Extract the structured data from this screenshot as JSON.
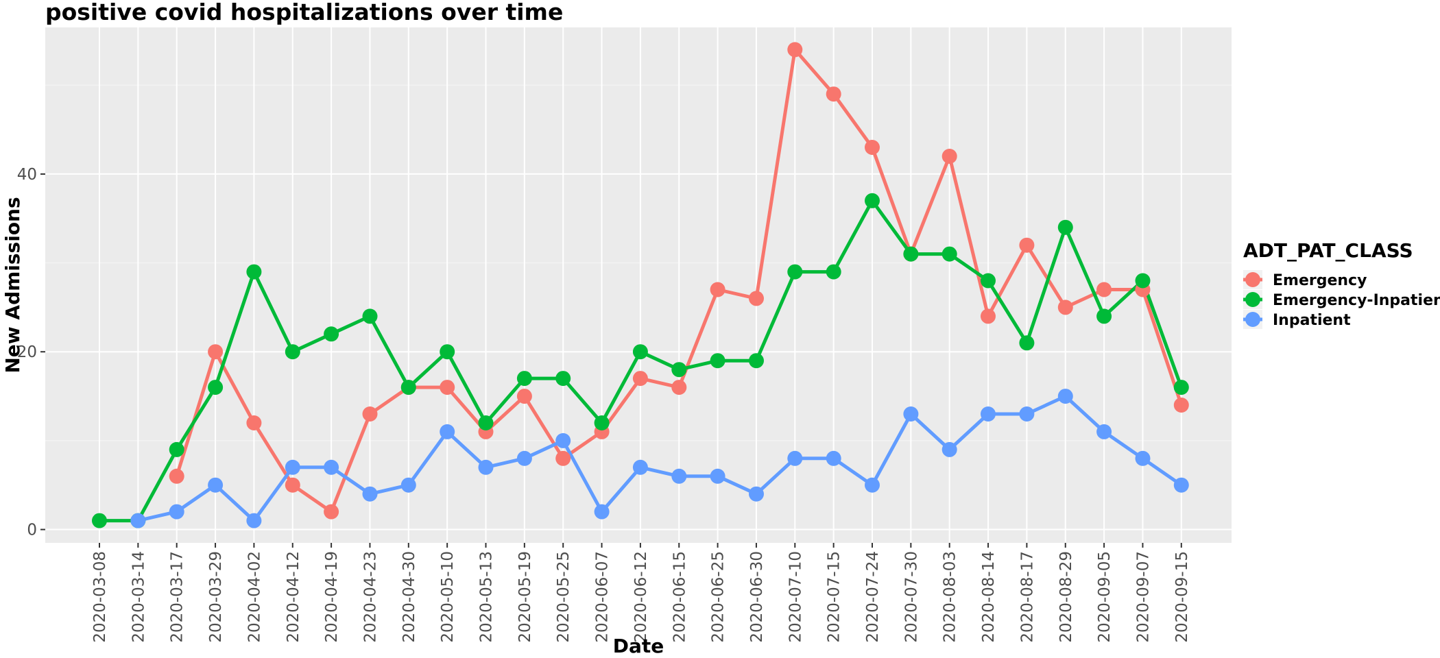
{
  "chart_data": {
    "type": "line",
    "title": "positive covid hospitalizations over time",
    "xlabel": "Date",
    "ylabel": "New Admissions",
    "legend_title": "ADT_PAT_CLASS",
    "legend_position": "right",
    "grid": true,
    "ylim": [
      -1.5,
      56.5
    ],
    "yticks": [
      0,
      20,
      40
    ],
    "x": [
      "2020-03-08",
      "2020-03-14",
      "2020-03-17",
      "2020-03-29",
      "2020-04-02",
      "2020-04-12",
      "2020-04-19",
      "2020-04-23",
      "2020-04-30",
      "2020-05-10",
      "2020-05-13",
      "2020-05-19",
      "2020-05-25",
      "2020-06-07",
      "2020-06-12",
      "2020-06-15",
      "2020-06-25",
      "2020-06-30",
      "2020-07-10",
      "2020-07-15",
      "2020-07-24",
      "2020-07-30",
      "2020-08-03",
      "2020-08-14",
      "2020-08-17",
      "2020-08-29",
      "2020-09-05",
      "2020-09-07",
      "2020-09-15"
    ],
    "series": [
      {
        "name": "Emergency",
        "color": "#F8766D",
        "values": [
          null,
          null,
          6,
          20,
          12,
          5,
          2,
          13,
          16,
          16,
          11,
          15,
          8,
          11,
          17,
          16,
          27,
          26,
          54,
          49,
          43,
          31,
          42,
          24,
          32,
          25,
          27,
          27,
          14
        ]
      },
      {
        "name": "Emergency-Inpatient",
        "color": "#00BA38",
        "values": [
          1,
          1,
          9,
          16,
          29,
          20,
          22,
          24,
          16,
          20,
          12,
          17,
          17,
          12,
          20,
          18,
          19,
          19,
          29,
          29,
          37,
          31,
          31,
          28,
          21,
          34,
          24,
          28,
          16
        ]
      },
      {
        "name": "Inpatient",
        "color": "#619CFF",
        "values": [
          null,
          1,
          2,
          5,
          1,
          7,
          7,
          4,
          5,
          11,
          7,
          8,
          10,
          2,
          7,
          6,
          6,
          4,
          8,
          8,
          5,
          13,
          9,
          13,
          13,
          15,
          11,
          8,
          5
        ]
      }
    ]
  }
}
